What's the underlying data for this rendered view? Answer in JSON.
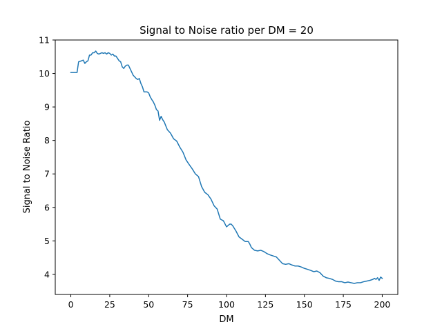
{
  "chart_data": {
    "type": "line",
    "title": "Signal to Noise ratio per DM = 20",
    "xlabel": "DM",
    "ylabel": "Signal to Noise Ratio",
    "xlim": [
      -10,
      210
    ],
    "ylim": [
      3.4,
      11
    ],
    "xticks": [
      0,
      25,
      50,
      75,
      100,
      125,
      150,
      175,
      200
    ],
    "yticks": [
      4,
      5,
      6,
      7,
      8,
      9,
      10,
      11
    ],
    "grid": false,
    "legend": "none",
    "series": [
      {
        "color": "#1f77b4",
        "x": [
          0,
          2,
          4,
          5,
          7,
          8,
          9,
          10,
          11,
          12,
          13,
          14,
          15,
          16,
          17,
          18,
          19,
          20,
          21,
          22,
          23,
          24,
          25,
          26,
          27,
          28,
          29,
          30,
          31,
          32,
          33,
          34,
          35,
          36,
          37,
          38,
          39,
          40,
          41,
          42,
          43,
          44,
          45,
          46,
          47,
          48,
          49,
          50,
          51,
          52,
          53,
          54,
          55,
          56,
          57,
          58,
          59,
          60,
          62,
          64,
          66,
          68,
          70,
          72,
          74,
          76,
          78,
          80,
          82,
          84,
          86,
          88,
          90,
          92,
          94,
          96,
          98,
          100,
          102,
          103,
          104,
          106,
          108,
          110,
          112,
          114,
          115,
          116,
          118,
          120,
          122,
          124,
          126,
          128,
          130,
          132,
          134,
          136,
          138,
          140,
          142,
          144,
          146,
          148,
          150,
          152,
          154,
          156,
          158,
          160,
          162,
          164,
          166,
          168,
          170,
          172,
          174,
          176,
          178,
          180,
          182,
          184,
          186,
          188,
          190,
          192,
          194,
          195,
          196,
          197,
          198,
          199,
          200
        ],
        "y": [
          10.03,
          10.03,
          10.03,
          10.35,
          10.38,
          10.4,
          10.3,
          10.35,
          10.38,
          10.55,
          10.55,
          10.62,
          10.62,
          10.67,
          10.6,
          10.58,
          10.6,
          10.62,
          10.6,
          10.62,
          10.58,
          10.62,
          10.6,
          10.55,
          10.58,
          10.52,
          10.52,
          10.45,
          10.38,
          10.35,
          10.2,
          10.15,
          10.22,
          10.25,
          10.25,
          10.15,
          10.05,
          9.95,
          9.9,
          9.85,
          9.82,
          9.85,
          9.7,
          9.6,
          9.45,
          9.45,
          9.45,
          9.42,
          9.3,
          9.22,
          9.15,
          9.05,
          8.92,
          8.88,
          8.6,
          8.72,
          8.62,
          8.55,
          8.32,
          8.22,
          8.05,
          7.98,
          7.8,
          7.65,
          7.42,
          7.28,
          7.15,
          7.0,
          6.92,
          6.62,
          6.45,
          6.38,
          6.25,
          6.05,
          5.95,
          5.65,
          5.6,
          5.42,
          5.5,
          5.5,
          5.45,
          5.3,
          5.12,
          5.05,
          4.98,
          4.98,
          4.9,
          4.8,
          4.72,
          4.7,
          4.72,
          4.68,
          4.62,
          4.58,
          4.55,
          4.52,
          4.42,
          4.32,
          4.3,
          4.32,
          4.28,
          4.25,
          4.25,
          4.22,
          4.18,
          4.15,
          4.12,
          4.08,
          4.1,
          4.05,
          3.95,
          3.9,
          3.88,
          3.85,
          3.8,
          3.78,
          3.78,
          3.75,
          3.77,
          3.75,
          3.73,
          3.75,
          3.75,
          3.78,
          3.8,
          3.82,
          3.85,
          3.88,
          3.85,
          3.9,
          3.82,
          3.92,
          3.88
        ]
      }
    ]
  }
}
